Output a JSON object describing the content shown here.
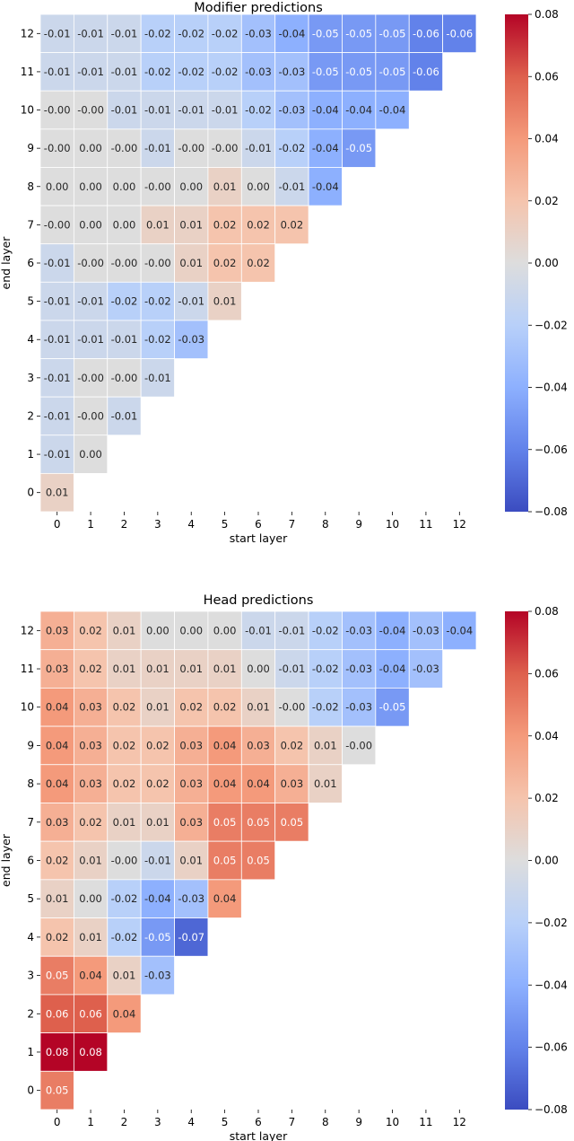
{
  "chart_data": [
    {
      "type": "heatmap",
      "title": "Modifier predictions",
      "xlabel": "start layer",
      "ylabel": "end layer",
      "x_ticks": [
        "0",
        "1",
        "2",
        "3",
        "4",
        "5",
        "6",
        "7",
        "8",
        "9",
        "10",
        "11",
        "12"
      ],
      "y_ticks": [
        "12",
        "11",
        "10",
        "9",
        "8",
        "7",
        "6",
        "5",
        "4",
        "3",
        "2",
        "1",
        "0"
      ],
      "colormap": "coolwarm",
      "vmin": -0.08,
      "vmax": 0.08,
      "colorbar_ticks": [
        "0.08",
        "0.06",
        "0.04",
        "0.02",
        "0.00",
        "−0.02",
        "−0.04",
        "−0.06",
        "−0.08"
      ],
      "colorbar_tick_values": [
        0.08,
        0.06,
        0.04,
        0.02,
        0.0,
        -0.02,
        -0.04,
        -0.06,
        -0.08
      ],
      "rows": [
        {
          "end": 12,
          "labels": [
            "-0.01",
            "-0.01",
            "-0.01",
            "-0.02",
            "-0.02",
            "-0.02",
            "-0.03",
            "-0.04",
            "-0.05",
            "-0.05",
            "-0.05",
            "-0.06",
            "-0.06"
          ]
        },
        {
          "end": 11,
          "labels": [
            "-0.01",
            "-0.01",
            "-0.01",
            "-0.02",
            "-0.02",
            "-0.02",
            "-0.03",
            "-0.03",
            "-0.05",
            "-0.05",
            "-0.05",
            "-0.06"
          ]
        },
        {
          "end": 10,
          "labels": [
            "-0.00",
            "-0.00",
            "-0.01",
            "-0.01",
            "-0.01",
            "-0.01",
            "-0.02",
            "-0.03",
            "-0.04",
            "-0.04",
            "-0.04"
          ]
        },
        {
          "end": 9,
          "labels": [
            "-0.00",
            "0.00",
            "-0.00",
            "-0.01",
            "-0.00",
            "-0.00",
            "-0.01",
            "-0.02",
            "-0.04",
            "-0.05"
          ]
        },
        {
          "end": 8,
          "labels": [
            "0.00",
            "0.00",
            "0.00",
            "-0.00",
            "0.00",
            "0.01",
            "0.00",
            "-0.01",
            "-0.04"
          ]
        },
        {
          "end": 7,
          "labels": [
            "-0.00",
            "0.00",
            "0.00",
            "0.01",
            "0.01",
            "0.02",
            "0.02",
            "0.02"
          ]
        },
        {
          "end": 6,
          "labels": [
            "-0.01",
            "-0.00",
            "-0.00",
            "-0.00",
            "0.01",
            "0.02",
            "0.02"
          ]
        },
        {
          "end": 5,
          "labels": [
            "-0.01",
            "-0.01",
            "-0.02",
            "-0.02",
            "-0.01",
            "0.01"
          ]
        },
        {
          "end": 4,
          "labels": [
            "-0.01",
            "-0.01",
            "-0.01",
            "-0.02",
            "-0.03"
          ]
        },
        {
          "end": 3,
          "labels": [
            "-0.01",
            "-0.00",
            "-0.00",
            "-0.01"
          ]
        },
        {
          "end": 2,
          "labels": [
            "-0.01",
            "-0.00",
            "-0.01"
          ]
        },
        {
          "end": 1,
          "labels": [
            "-0.01",
            "0.00"
          ]
        },
        {
          "end": 0,
          "labels": [
            "0.01"
          ]
        }
      ]
    },
    {
      "type": "heatmap",
      "title": "Head predictions",
      "xlabel": "start layer",
      "ylabel": "end layer",
      "x_ticks": [
        "0",
        "1",
        "2",
        "3",
        "4",
        "5",
        "6",
        "7",
        "8",
        "9",
        "10",
        "11",
        "12"
      ],
      "y_ticks": [
        "12",
        "11",
        "10",
        "9",
        "8",
        "7",
        "6",
        "5",
        "4",
        "3",
        "2",
        "1",
        "0"
      ],
      "colormap": "coolwarm",
      "vmin": -0.08,
      "vmax": 0.08,
      "colorbar_ticks": [
        "0.08",
        "0.06",
        "0.04",
        "0.02",
        "0.00",
        "−0.02",
        "−0.04",
        "−0.06",
        "−0.08"
      ],
      "colorbar_tick_values": [
        0.08,
        0.06,
        0.04,
        0.02,
        0.0,
        -0.02,
        -0.04,
        -0.06,
        -0.08
      ],
      "rows": [
        {
          "end": 12,
          "labels": [
            "0.03",
            "0.02",
            "0.01",
            "0.00",
            "0.00",
            "0.00",
            "-0.01",
            "-0.01",
            "-0.02",
            "-0.03",
            "-0.04",
            "-0.03",
            "-0.04"
          ]
        },
        {
          "end": 11,
          "labels": [
            "0.03",
            "0.02",
            "0.01",
            "0.01",
            "0.01",
            "0.01",
            "0.00",
            "-0.01",
            "-0.02",
            "-0.03",
            "-0.04",
            "-0.03"
          ]
        },
        {
          "end": 10,
          "labels": [
            "0.04",
            "0.03",
            "0.02",
            "0.01",
            "0.02",
            "0.02",
            "0.01",
            "-0.00",
            "-0.02",
            "-0.03",
            "-0.05"
          ]
        },
        {
          "end": 9,
          "labels": [
            "0.04",
            "0.03",
            "0.02",
            "0.02",
            "0.03",
            "0.04",
            "0.03",
            "0.02",
            "0.01",
            "-0.00"
          ]
        },
        {
          "end": 8,
          "labels": [
            "0.04",
            "0.03",
            "0.02",
            "0.02",
            "0.03",
            "0.04",
            "0.04",
            "0.03",
            "0.01"
          ]
        },
        {
          "end": 7,
          "labels": [
            "0.03",
            "0.02",
            "0.01",
            "0.01",
            "0.03",
            "0.05",
            "0.05",
            "0.05"
          ]
        },
        {
          "end": 6,
          "labels": [
            "0.02",
            "0.01",
            "-0.00",
            "-0.01",
            "0.01",
            "0.05",
            "0.05"
          ]
        },
        {
          "end": 5,
          "labels": [
            "0.01",
            "0.00",
            "-0.02",
            "-0.04",
            "-0.03",
            "0.04"
          ]
        },
        {
          "end": 4,
          "labels": [
            "0.02",
            "0.01",
            "-0.02",
            "-0.05",
            "-0.07"
          ]
        },
        {
          "end": 3,
          "labels": [
            "0.05",
            "0.04",
            "0.01",
            "-0.03"
          ]
        },
        {
          "end": 2,
          "labels": [
            "0.06",
            "0.06",
            "0.04"
          ]
        },
        {
          "end": 1,
          "labels": [
            "0.08",
            "0.08"
          ]
        },
        {
          "end": 0,
          "labels": [
            "0.05"
          ]
        }
      ]
    }
  ]
}
